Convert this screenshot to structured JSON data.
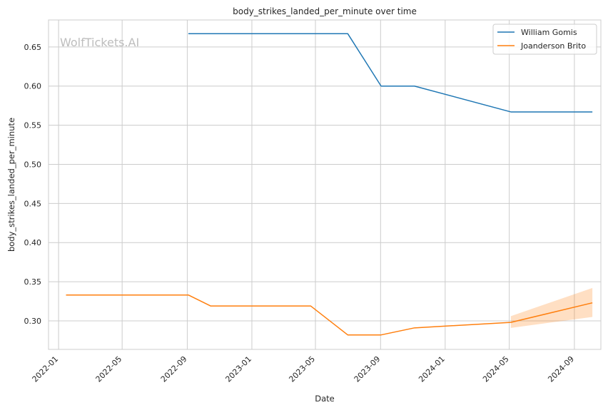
{
  "chart_data": {
    "type": "line",
    "title": "body_strikes_landed_per_minute over time",
    "xlabel": "Date",
    "ylabel": "body_strikes_landed_per_minute",
    "watermark": "WolfTickets.AI",
    "xlim": [
      "2021-12-13",
      "2024-10-21"
    ],
    "ylim": [
      0.2635,
      0.6845
    ],
    "x_ticks": [
      "2022-01",
      "2022-05",
      "2022-09",
      "2023-01",
      "2023-05",
      "2023-09",
      "2024-01",
      "2024-05",
      "2024-09"
    ],
    "y_ticks": [
      "0.30",
      "0.35",
      "0.40",
      "0.45",
      "0.50",
      "0.55",
      "0.60",
      "0.65"
    ],
    "grid": true,
    "legend_position": "top-right",
    "series": [
      {
        "name": "William Gomis",
        "color": "#1f77b4",
        "points": [
          {
            "x": "2022-09-03",
            "y": 0.667
          },
          {
            "x": "2023-07-01",
            "y": 0.667
          },
          {
            "x": "2023-09-02",
            "y": 0.6
          },
          {
            "x": "2023-11-04",
            "y": 0.6
          },
          {
            "x": "2024-05-04",
            "y": 0.567
          },
          {
            "x": "2024-10-05",
            "y": 0.567
          }
        ]
      },
      {
        "name": "Joanderson Brito",
        "color": "#ff7f0e",
        "points": [
          {
            "x": "2022-01-15",
            "y": 0.333
          },
          {
            "x": "2022-09-03",
            "y": 0.333
          },
          {
            "x": "2022-10-15",
            "y": 0.319
          },
          {
            "x": "2023-04-22",
            "y": 0.319
          },
          {
            "x": "2023-07-01",
            "y": 0.282
          },
          {
            "x": "2023-09-02",
            "y": 0.282
          },
          {
            "x": "2023-11-04",
            "y": 0.291
          },
          {
            "x": "2024-05-04",
            "y": 0.298
          },
          {
            "x": "2024-10-05",
            "y": 0.323
          }
        ],
        "band": [
          {
            "x": "2024-05-04",
            "low": 0.291,
            "high": 0.306
          },
          {
            "x": "2024-10-05",
            "low": 0.305,
            "high": 0.342
          }
        ]
      }
    ]
  }
}
